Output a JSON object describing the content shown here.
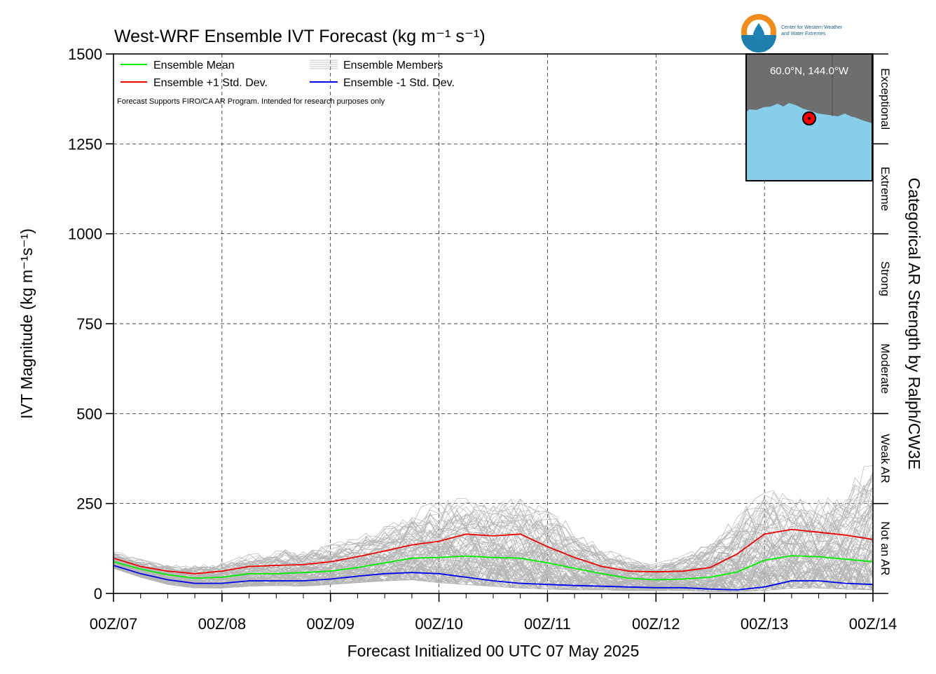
{
  "chart_data": {
    "type": "line",
    "title": "West-WRF Ensemble IVT Forecast (kg m⁻¹ s⁻¹)",
    "xlabel": "Forecast Initialized 00 UTC 07 May 2025",
    "ylabel": "IVT Magnitude (kg m⁻¹s⁻¹)",
    "right_label": "Categorical AR Strength by Ralph/CW3E",
    "x_unit": "forecast hour",
    "xlim": [
      0,
      168
    ],
    "ylim": [
      0,
      1500
    ],
    "x_ticks": [
      {
        "value": 0,
        "label": "00Z/07"
      },
      {
        "value": 24,
        "label": "00Z/08"
      },
      {
        "value": 48,
        "label": "00Z/09"
      },
      {
        "value": 72,
        "label": "00Z/10"
      },
      {
        "value": 96,
        "label": "00Z/11"
      },
      {
        "value": 120,
        "label": "00Z/12"
      },
      {
        "value": 144,
        "label": "00Z/13"
      },
      {
        "value": 168,
        "label": "00Z/14"
      }
    ],
    "y_ticks": [
      {
        "value": 0,
        "label": "0"
      },
      {
        "value": 250,
        "label": "250"
      },
      {
        "value": 500,
        "label": "500"
      },
      {
        "value": 750,
        "label": "750"
      },
      {
        "value": 1000,
        "label": "1000"
      },
      {
        "value": 1250,
        "label": "1250"
      },
      {
        "value": 1500,
        "label": "1500"
      }
    ],
    "grid": true,
    "legend_position": "top-left",
    "categories": [
      {
        "label": "Not an AR",
        "from": 0,
        "to": 250
      },
      {
        "label": "Weak AR",
        "from": 250,
        "to": 500
      },
      {
        "label": "Moderate",
        "from": 500,
        "to": 750
      },
      {
        "label": "Strong",
        "from": 750,
        "to": 1000
      },
      {
        "label": "Extreme",
        "from": 1000,
        "to": 1250
      },
      {
        "label": "Exceptional",
        "from": 1250,
        "to": 1500
      }
    ],
    "x": [
      0,
      6,
      12,
      18,
      24,
      30,
      36,
      42,
      48,
      54,
      60,
      66,
      72,
      78,
      84,
      90,
      96,
      102,
      108,
      114,
      120,
      126,
      132,
      138,
      144,
      150,
      156,
      162,
      168
    ],
    "series": [
      {
        "name": "Ensemble Mean",
        "color": "#00ee00",
        "values": [
          88,
          68,
          52,
          42,
          45,
          55,
          55,
          58,
          62,
          72,
          85,
          98,
          100,
          104,
          100,
          98,
          85,
          70,
          55,
          42,
          38,
          40,
          45,
          60,
          92,
          105,
          102,
          95,
          88
        ]
      },
      {
        "name": "Ensemble +1 Std. Dev.",
        "color": "#ee0000",
        "values": [
          98,
          75,
          62,
          55,
          62,
          75,
          78,
          80,
          88,
          102,
          118,
          135,
          145,
          165,
          160,
          165,
          130,
          100,
          75,
          62,
          60,
          62,
          72,
          110,
          165,
          178,
          170,
          162,
          150
        ]
      },
      {
        "name": "Ensemble -1 Std. Dev.",
        "color": "#0000ee",
        "values": [
          78,
          55,
          38,
          28,
          28,
          35,
          35,
          35,
          40,
          48,
          55,
          58,
          55,
          45,
          35,
          28,
          25,
          22,
          20,
          18,
          16,
          16,
          12,
          10,
          18,
          35,
          35,
          28,
          25
        ]
      }
    ],
    "members": {
      "name": "Ensemble Members",
      "color": "#b4b4b4",
      "count": 100,
      "envelope_min": [
        70,
        45,
        25,
        15,
        15,
        20,
        22,
        20,
        25,
        30,
        35,
        38,
        30,
        25,
        20,
        15,
        12,
        10,
        10,
        8,
        8,
        8,
        5,
        5,
        8,
        15,
        15,
        12,
        10
      ],
      "envelope_max": [
        120,
        95,
        85,
        80,
        90,
        110,
        120,
        125,
        140,
        160,
        190,
        230,
        260,
        270,
        265,
        270,
        250,
        180,
        130,
        100,
        85,
        110,
        150,
        220,
        290,
        280,
        260,
        300,
        390
      ]
    },
    "annotation": "Forecast Supports FIRO/CA AR Program. Intended for research purposes only"
  },
  "inset": {
    "location_label": "60.0°N, 144.0°W",
    "land_color": "#6e6e6e",
    "ocean_color": "#87ceeb",
    "marker_color": "#ff0000"
  },
  "logo": {
    "line1": "Center for Western Weather",
    "line2": "and Water Extremes",
    "ring_color": "#f08c1e",
    "drop_color": "#1e82b4"
  }
}
